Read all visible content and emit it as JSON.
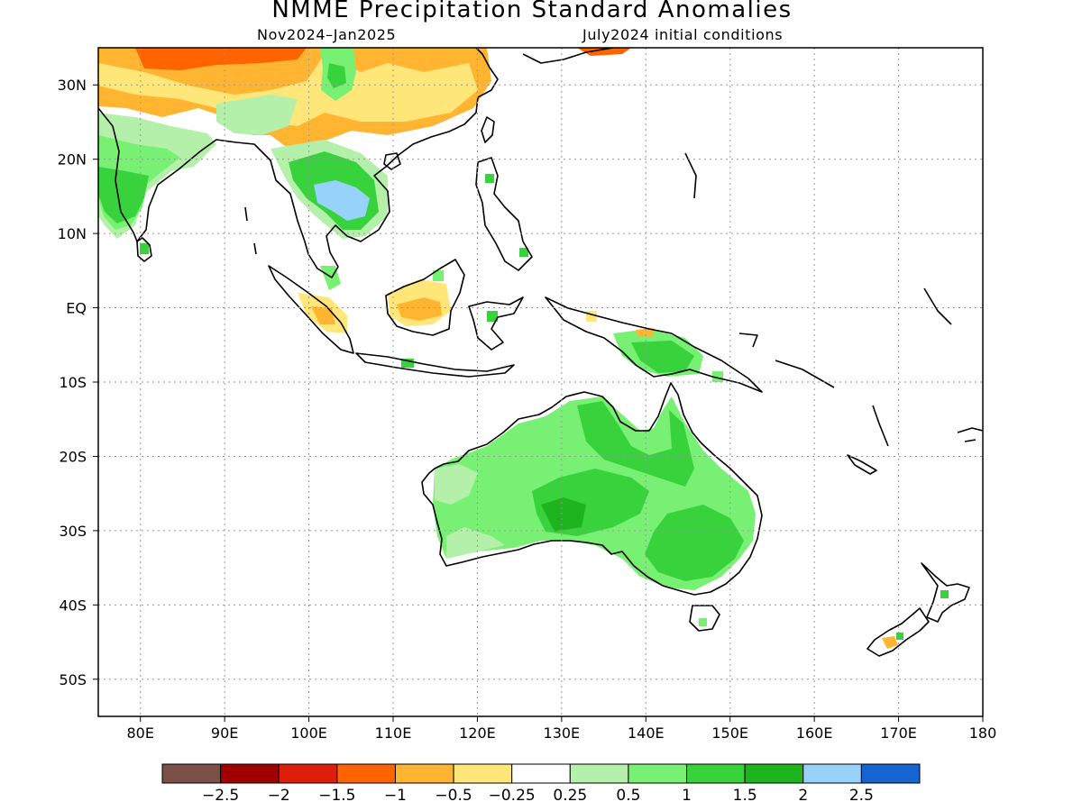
{
  "title": "NMME Precipitation Standard Anomalies",
  "subtitle_left": "Nov2024–Jan2025",
  "subtitle_right": "July2024 initial conditions",
  "map": {
    "lon_range": [
      75,
      180
    ],
    "lat_range": [
      -55,
      35
    ],
    "grid": true,
    "lat_ticks": [
      {
        "value": 30,
        "label": "30N"
      },
      {
        "value": 20,
        "label": "20N"
      },
      {
        "value": 10,
        "label": "10N"
      },
      {
        "value": 0,
        "label": "EQ"
      },
      {
        "value": -10,
        "label": "10S"
      },
      {
        "value": -20,
        "label": "20S"
      },
      {
        "value": -30,
        "label": "30S"
      },
      {
        "value": -40,
        "label": "40S"
      },
      {
        "value": -50,
        "label": "50S"
      }
    ],
    "lon_ticks": [
      {
        "value": 80,
        "label": "80E"
      },
      {
        "value": 90,
        "label": "90E"
      },
      {
        "value": 100,
        "label": "100E"
      },
      {
        "value": 110,
        "label": "110E"
      },
      {
        "value": 120,
        "label": "120E"
      },
      {
        "value": 130,
        "label": "130E"
      },
      {
        "value": 140,
        "label": "140E"
      },
      {
        "value": 150,
        "label": "150E"
      },
      {
        "value": 160,
        "label": "160E"
      },
      {
        "value": 170,
        "label": "170E"
      },
      {
        "value": 180,
        "label": "180"
      }
    ]
  },
  "colorbar": {
    "colors": [
      "#7b5046",
      "#a00000",
      "#dc1e0a",
      "#ff6400",
      "#ffb432",
      "#ffe678",
      "#ffffff",
      "#b4f0aa",
      "#78f073",
      "#37d23c",
      "#1eb41e",
      "#96d2fa",
      "#1464d2"
    ],
    "labels": [
      "-2.5",
      "-2",
      "-1.5",
      "-1",
      "-0.5",
      "-0.25",
      "0.25",
      "0.5",
      "1",
      "1.5",
      "2",
      "2.5"
    ]
  }
}
